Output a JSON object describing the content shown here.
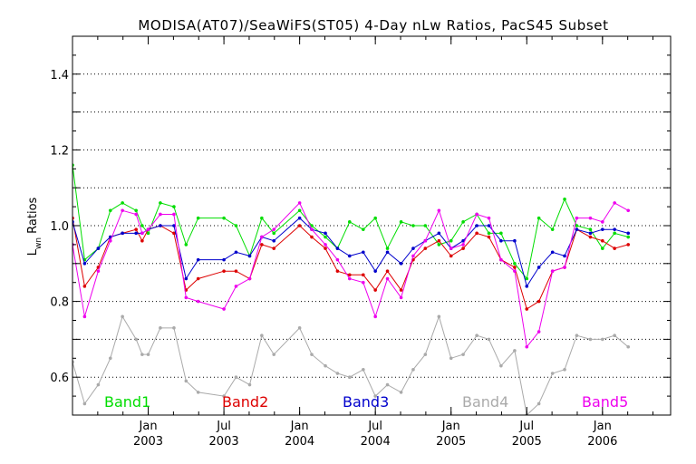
{
  "chart_data": {
    "type": "line",
    "title": "MODISA(AT07)/SeaWiFS(ST05) 4-Day nLw Ratios, PacS45 Subset",
    "ylabel_main": "L",
    "ylabel_sub": "wn",
    "ylabel_rest": " Ratios",
    "xlabel": "",
    "ylim": [
      0.5,
      1.5
    ],
    "xlim": [
      2002.5,
      2006.45
    ],
    "grid": true,
    "yticks": [
      {
        "value": 0.6,
        "label": "0.6"
      },
      {
        "value": 0.8,
        "label": "0.8"
      },
      {
        "value": 1.0,
        "label": "1.0"
      },
      {
        "value": 1.2,
        "label": "1.2"
      },
      {
        "value": 1.4,
        "label": "1.4"
      }
    ],
    "xticks": [
      {
        "value": 2003.0,
        "month": "Jan",
        "year": "2003"
      },
      {
        "value": 2003.5,
        "month": "Jul",
        "year": "2003"
      },
      {
        "value": 2004.0,
        "month": "Jan",
        "year": "2004"
      },
      {
        "value": 2004.5,
        "month": "Jul",
        "year": "2004"
      },
      {
        "value": 2005.0,
        "month": "Jan",
        "year": "2005"
      },
      {
        "value": 2005.5,
        "month": "Jul",
        "year": "2005"
      },
      {
        "value": 2006.0,
        "month": "Jan",
        "year": "2006"
      }
    ],
    "series": [
      {
        "name": "Band1",
        "color": "#00dd00",
        "points": [
          [
            2002.5,
            1.16
          ],
          [
            2002.58,
            0.91
          ],
          [
            2002.67,
            0.94
          ],
          [
            2002.75,
            1.04
          ],
          [
            2002.83,
            1.06
          ],
          [
            2002.92,
            1.04
          ],
          [
            2002.96,
            1.0
          ],
          [
            2003.0,
            0.98
          ],
          [
            2003.08,
            1.06
          ],
          [
            2003.17,
            1.05
          ],
          [
            2003.25,
            0.95
          ],
          [
            2003.33,
            1.02
          ],
          [
            2003.5,
            1.02
          ],
          [
            2003.58,
            1.0
          ],
          [
            2003.67,
            0.92
          ],
          [
            2003.75,
            1.02
          ],
          [
            2003.83,
            0.98
          ],
          [
            2004.0,
            1.04
          ],
          [
            2004.08,
            1.0
          ],
          [
            2004.17,
            0.97
          ],
          [
            2004.25,
            0.94
          ],
          [
            2004.33,
            1.01
          ],
          [
            2004.42,
            0.99
          ],
          [
            2004.5,
            1.02
          ],
          [
            2004.58,
            0.94
          ],
          [
            2004.67,
            1.01
          ],
          [
            2004.75,
            1.0
          ],
          [
            2004.83,
            1.0
          ],
          [
            2004.92,
            0.95
          ],
          [
            2005.0,
            0.96
          ],
          [
            2005.08,
            1.01
          ],
          [
            2005.17,
            1.03
          ],
          [
            2005.25,
            0.98
          ],
          [
            2005.33,
            0.98
          ],
          [
            2005.42,
            0.9
          ],
          [
            2005.5,
            0.86
          ],
          [
            2005.58,
            1.02
          ],
          [
            2005.67,
            0.99
          ],
          [
            2005.75,
            1.07
          ],
          [
            2005.83,
            1.0
          ],
          [
            2005.92,
            0.99
          ],
          [
            2006.0,
            0.94
          ],
          [
            2006.08,
            0.98
          ],
          [
            2006.17,
            0.97
          ]
        ]
      },
      {
        "name": "Band2",
        "color": "#dd0000",
        "points": [
          [
            2002.5,
            1.02
          ],
          [
            2002.58,
            0.84
          ],
          [
            2002.67,
            0.89
          ],
          [
            2002.75,
            0.97
          ],
          [
            2002.83,
            0.98
          ],
          [
            2002.92,
            0.99
          ],
          [
            2002.96,
            0.96
          ],
          [
            2003.0,
            0.99
          ],
          [
            2003.08,
            1.0
          ],
          [
            2003.17,
            0.98
          ],
          [
            2003.25,
            0.83
          ],
          [
            2003.33,
            0.86
          ],
          [
            2003.5,
            0.88
          ],
          [
            2003.58,
            0.88
          ],
          [
            2003.67,
            0.86
          ],
          [
            2003.75,
            0.95
          ],
          [
            2003.83,
            0.94
          ],
          [
            2004.0,
            1.0
          ],
          [
            2004.08,
            0.97
          ],
          [
            2004.17,
            0.94
          ],
          [
            2004.25,
            0.88
          ],
          [
            2004.33,
            0.87
          ],
          [
            2004.42,
            0.87
          ],
          [
            2004.5,
            0.83
          ],
          [
            2004.58,
            0.88
          ],
          [
            2004.67,
            0.83
          ],
          [
            2004.75,
            0.91
          ],
          [
            2004.83,
            0.94
          ],
          [
            2004.92,
            0.96
          ],
          [
            2005.0,
            0.92
          ],
          [
            2005.08,
            0.94
          ],
          [
            2005.17,
            0.98
          ],
          [
            2005.25,
            0.97
          ],
          [
            2005.33,
            0.91
          ],
          [
            2005.42,
            0.89
          ],
          [
            2005.5,
            0.78
          ],
          [
            2005.58,
            0.8
          ],
          [
            2005.67,
            0.88
          ],
          [
            2005.75,
            0.89
          ],
          [
            2005.83,
            0.99
          ],
          [
            2005.92,
            0.97
          ],
          [
            2006.0,
            0.96
          ],
          [
            2006.08,
            0.94
          ],
          [
            2006.17,
            0.95
          ]
        ]
      },
      {
        "name": "Band3",
        "color": "#0000cc",
        "points": [
          [
            2002.5,
            1.01
          ],
          [
            2002.58,
            0.9
          ],
          [
            2002.67,
            0.94
          ],
          [
            2002.75,
            0.97
          ],
          [
            2002.83,
            0.98
          ],
          [
            2002.92,
            0.98
          ],
          [
            2002.96,
            0.98
          ],
          [
            2003.0,
            0.99
          ],
          [
            2003.08,
            1.0
          ],
          [
            2003.17,
            1.0
          ],
          [
            2003.25,
            0.86
          ],
          [
            2003.33,
            0.91
          ],
          [
            2003.5,
            0.91
          ],
          [
            2003.58,
            0.93
          ],
          [
            2003.67,
            0.92
          ],
          [
            2003.75,
            0.97
          ],
          [
            2003.83,
            0.96
          ],
          [
            2004.0,
            1.02
          ],
          [
            2004.08,
            0.99
          ],
          [
            2004.17,
            0.98
          ],
          [
            2004.25,
            0.94
          ],
          [
            2004.33,
            0.92
          ],
          [
            2004.42,
            0.93
          ],
          [
            2004.5,
            0.88
          ],
          [
            2004.58,
            0.93
          ],
          [
            2004.67,
            0.9
          ],
          [
            2004.75,
            0.94
          ],
          [
            2004.83,
            0.96
          ],
          [
            2004.92,
            0.98
          ],
          [
            2005.0,
            0.94
          ],
          [
            2005.08,
            0.96
          ],
          [
            2005.17,
            1.0
          ],
          [
            2005.25,
            1.0
          ],
          [
            2005.33,
            0.96
          ],
          [
            2005.42,
            0.96
          ],
          [
            2005.5,
            0.84
          ],
          [
            2005.58,
            0.89
          ],
          [
            2005.67,
            0.93
          ],
          [
            2005.75,
            0.92
          ],
          [
            2005.83,
            0.99
          ],
          [
            2005.92,
            0.98
          ],
          [
            2006.0,
            0.99
          ],
          [
            2006.08,
            0.99
          ],
          [
            2006.17,
            0.98
          ]
        ]
      },
      {
        "name": "Band4",
        "color": "#aaaaaa",
        "points": [
          [
            2002.5,
            0.64
          ],
          [
            2002.58,
            0.53
          ],
          [
            2002.67,
            0.58
          ],
          [
            2002.75,
            0.65
          ],
          [
            2002.83,
            0.76
          ],
          [
            2002.92,
            0.7
          ],
          [
            2002.96,
            0.66
          ],
          [
            2003.0,
            0.66
          ],
          [
            2003.08,
            0.73
          ],
          [
            2003.17,
            0.73
          ],
          [
            2003.25,
            0.59
          ],
          [
            2003.33,
            0.56
          ],
          [
            2003.5,
            0.55
          ],
          [
            2003.58,
            0.6
          ],
          [
            2003.67,
            0.58
          ],
          [
            2003.75,
            0.71
          ],
          [
            2003.83,
            0.66
          ],
          [
            2004.0,
            0.73
          ],
          [
            2004.08,
            0.66
          ],
          [
            2004.17,
            0.63
          ],
          [
            2004.25,
            0.61
          ],
          [
            2004.33,
            0.6
          ],
          [
            2004.42,
            0.62
          ],
          [
            2004.5,
            0.55
          ],
          [
            2004.58,
            0.58
          ],
          [
            2004.67,
            0.56
          ],
          [
            2004.75,
            0.62
          ],
          [
            2004.83,
            0.66
          ],
          [
            2004.92,
            0.76
          ],
          [
            2005.0,
            0.65
          ],
          [
            2005.08,
            0.66
          ],
          [
            2005.17,
            0.71
          ],
          [
            2005.25,
            0.7
          ],
          [
            2005.33,
            0.63
          ],
          [
            2005.42,
            0.67
          ],
          [
            2005.5,
            0.5
          ],
          [
            2005.58,
            0.53
          ],
          [
            2005.67,
            0.61
          ],
          [
            2005.75,
            0.62
          ],
          [
            2005.83,
            0.71
          ],
          [
            2005.92,
            0.7
          ],
          [
            2006.0,
            0.7
          ],
          [
            2006.08,
            0.71
          ],
          [
            2006.17,
            0.68
          ]
        ]
      },
      {
        "name": "Band5",
        "color": "#ee00ee",
        "points": [
          [
            2002.5,
            0.95
          ],
          [
            2002.58,
            0.76
          ],
          [
            2002.67,
            0.88
          ],
          [
            2002.75,
            0.96
          ],
          [
            2002.83,
            1.04
          ],
          [
            2002.92,
            1.03
          ],
          [
            2002.96,
            0.98
          ],
          [
            2003.0,
            0.99
          ],
          [
            2003.08,
            1.03
          ],
          [
            2003.17,
            1.03
          ],
          [
            2003.25,
            0.81
          ],
          [
            2003.33,
            0.8
          ],
          [
            2003.5,
            0.78
          ],
          [
            2003.58,
            0.84
          ],
          [
            2003.67,
            0.86
          ],
          [
            2003.75,
            0.97
          ],
          [
            2003.83,
            0.99
          ],
          [
            2004.0,
            1.06
          ],
          [
            2004.08,
            0.99
          ],
          [
            2004.17,
            0.95
          ],
          [
            2004.25,
            0.91
          ],
          [
            2004.33,
            0.86
          ],
          [
            2004.42,
            0.85
          ],
          [
            2004.5,
            0.76
          ],
          [
            2004.58,
            0.86
          ],
          [
            2004.67,
            0.81
          ],
          [
            2004.75,
            0.92
          ],
          [
            2004.83,
            0.96
          ],
          [
            2004.92,
            1.04
          ],
          [
            2005.0,
            0.94
          ],
          [
            2005.08,
            0.95
          ],
          [
            2005.17,
            1.03
          ],
          [
            2005.25,
            1.02
          ],
          [
            2005.33,
            0.91
          ],
          [
            2005.42,
            0.88
          ],
          [
            2005.5,
            0.68
          ],
          [
            2005.58,
            0.72
          ],
          [
            2005.67,
            0.88
          ],
          [
            2005.75,
            0.89
          ],
          [
            2005.83,
            1.02
          ],
          [
            2005.92,
            1.02
          ],
          [
            2006.0,
            1.01
          ],
          [
            2006.08,
            1.06
          ],
          [
            2006.17,
            1.04
          ]
        ]
      }
    ]
  }
}
